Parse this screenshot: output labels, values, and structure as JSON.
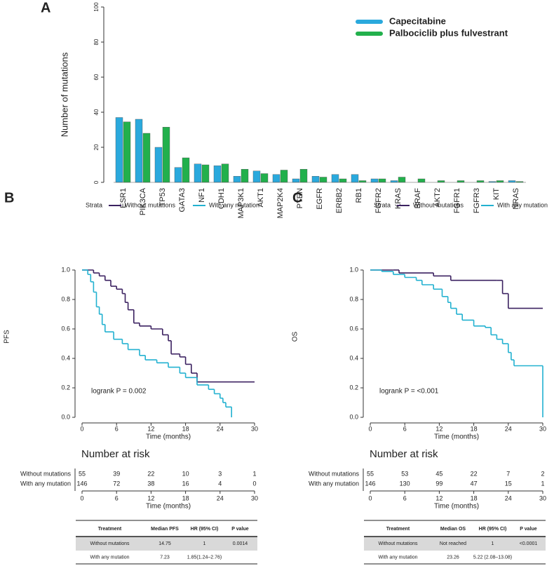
{
  "chart_data": [
    {
      "type": "bar",
      "panel_label": "A",
      "ylabel": "Number of mutations",
      "categories": [
        "ESR1",
        "PIK3CA",
        "TP53",
        "GATA3",
        "NF1",
        "CDH1",
        "MAP3K1",
        "AKT1",
        "MAP2K4",
        "PTEN",
        "EGFR",
        "ERBB2",
        "RB1",
        "FGFR2",
        "KRAS",
        "BRAF",
        "AKT2",
        "FGFR1",
        "FGFR3",
        "KIT",
        "NRAS"
      ],
      "series": [
        {
          "name": "Capecitabine",
          "color": "#2aa9dd",
          "values": [
            37,
            36,
            20,
            8.5,
            10.5,
            9.5,
            3.5,
            6.5,
            4.5,
            2,
            3.5,
            4.5,
            4.5,
            2,
            1,
            0,
            0,
            0,
            0,
            0.5,
            1
          ]
        },
        {
          "name": "Palbociclib plus fulvestrant",
          "color": "#22b04c",
          "values": [
            34.5,
            28,
            31.5,
            14,
            10,
            10.5,
            7.5,
            5,
            7,
            7.5,
            3,
            2,
            1,
            2,
            3,
            2,
            1,
            1,
            1,
            1,
            0.5
          ]
        }
      ],
      "ylim": [
        0,
        100
      ],
      "yticks": [
        0,
        20,
        40,
        60,
        80,
        100
      ],
      "legend": "top-right"
    },
    {
      "type": "km",
      "panel_label": "B",
      "legend_title": "Strata",
      "ylabel": "PFS",
      "xlabel": "Time (months)",
      "annotation": "logrank P = 0.002",
      "xlim": [
        0,
        30
      ],
      "xticks": [
        0,
        6,
        12,
        18,
        24,
        30
      ],
      "ylim": [
        0,
        1
      ],
      "yticks": [
        {
          "value": 0,
          "label": "0.0"
        },
        0.2,
        0.4,
        0.6,
        0.8,
        {
          "value": 1,
          "label": "1.0"
        }
      ],
      "series": [
        {
          "name": "Without mutations",
          "color": "#3b2160",
          "x": [
            0,
            2,
            3,
            4,
            5,
            6,
            7,
            7.5,
            8,
            9,
            10,
            12,
            14,
            15,
            15.5,
            17,
            18,
            19,
            20,
            30
          ],
          "values": [
            1,
            0.98,
            0.96,
            0.93,
            0.89,
            0.87,
            0.84,
            0.78,
            0.73,
            0.64,
            0.62,
            0.6,
            0.56,
            0.52,
            0.43,
            0.41,
            0.36,
            0.3,
            0.24,
            0.24
          ]
        },
        {
          "name": "With any mutation",
          "color": "#22b1d0",
          "x": [
            0,
            1,
            1.5,
            2,
            2.5,
            3,
            3.5,
            4,
            5.5,
            7,
            8,
            10,
            11,
            13,
            15,
            17,
            18,
            20,
            22,
            23,
            24,
            24.5,
            25,
            26
          ],
          "values": [
            1,
            0.97,
            0.92,
            0.85,
            0.75,
            0.7,
            0.63,
            0.58,
            0.53,
            0.5,
            0.46,
            0.42,
            0.39,
            0.37,
            0.34,
            0.3,
            0.27,
            0.22,
            0.19,
            0.16,
            0.13,
            0.1,
            0.07,
            0
          ]
        }
      ],
      "risk_table": {
        "title": "Number at risk",
        "xlabel": "Time (months)",
        "xticks": [
          0,
          6,
          12,
          18,
          24,
          30
        ],
        "rows": [
          {
            "name": "Without mutations",
            "color": "#3b2160",
            "values": [
              55,
              39,
              22,
              10,
              3,
              1
            ]
          },
          {
            "name": "With any mutation",
            "color": "#22b1d0",
            "values": [
              146,
              72,
              38,
              16,
              4,
              0
            ]
          }
        ]
      },
      "summary_table": {
        "header": [
          "Treatment",
          "Median PFS",
          "HR (95% CI)",
          "P value"
        ],
        "rows": [
          [
            "Without mutations",
            "14.75",
            "1",
            "0.0014"
          ],
          [
            "With any mutation",
            "7.23",
            "1.85(1.24–2.76)",
            ""
          ]
        ]
      }
    },
    {
      "type": "km",
      "panel_label": "C",
      "legend_title": "Strata",
      "ylabel": "OS",
      "xlabel": "Time (months)",
      "annotation": "logrank P = <0.001",
      "xlim": [
        0,
        30
      ],
      "xticks": [
        0,
        6,
        12,
        18,
        24,
        30
      ],
      "ylim": [
        0,
        1
      ],
      "yticks": [
        {
          "value": 0,
          "label": "0.0"
        },
        0.2,
        0.4,
        0.6,
        0.8,
        {
          "value": 1,
          "label": "1.0"
        }
      ],
      "series": [
        {
          "name": "Without mutations",
          "color": "#3b2160",
          "x": [
            0,
            4,
            5,
            11,
            14,
            22,
            23,
            24,
            30
          ],
          "values": [
            1,
            1,
            0.98,
            0.96,
            0.93,
            0.93,
            0.84,
            0.74,
            0.74
          ]
        },
        {
          "name": "With any mutation",
          "color": "#22b1d0",
          "x": [
            0,
            2,
            4,
            6,
            8,
            9,
            11,
            12.5,
            13.5,
            14,
            15,
            16,
            18,
            20,
            21,
            22,
            23,
            24,
            24.5,
            25,
            30
          ],
          "values": [
            1,
            0.99,
            0.97,
            0.95,
            0.93,
            0.9,
            0.87,
            0.82,
            0.78,
            0.74,
            0.7,
            0.66,
            0.62,
            0.61,
            0.56,
            0.53,
            0.5,
            0.44,
            0.39,
            0.35,
            0
          ]
        }
      ],
      "risk_table": {
        "title": "Number at risk",
        "xlabel": "Time (months)",
        "xticks": [
          0,
          6,
          12,
          18,
          24,
          30
        ],
        "rows": [
          {
            "name": "Without mutations",
            "color": "#3b2160",
            "values": [
              55,
              53,
              45,
              22,
              7,
              2
            ]
          },
          {
            "name": "With any mutation",
            "color": "#22b1d0",
            "values": [
              146,
              130,
              99,
              47,
              15,
              1
            ]
          }
        ]
      },
      "summary_table": {
        "header": [
          "Treatment",
          "Median OS",
          "HR (95% CI)",
          "P value"
        ],
        "rows": [
          [
            "Without mutations",
            "Not reached",
            "1",
            "<0.0001"
          ],
          [
            "With any mutation",
            "23.26",
            "5.22 (2.08–13.08)",
            ""
          ]
        ]
      }
    }
  ]
}
